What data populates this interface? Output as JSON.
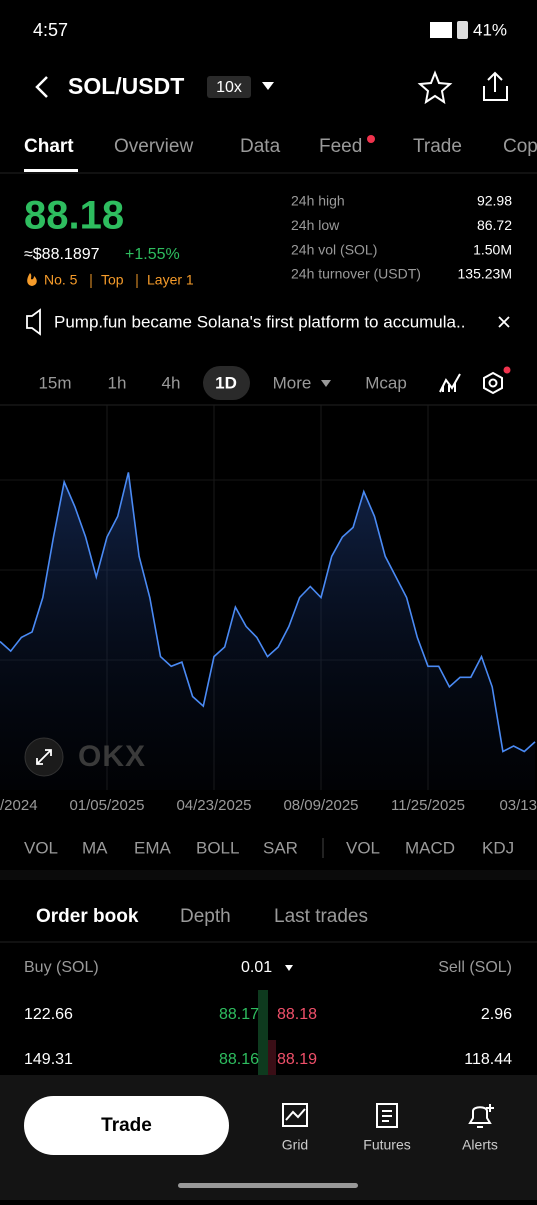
{
  "status": {
    "time": "4:57",
    "battery": "41%"
  },
  "header": {
    "pair": "SOL/USDT",
    "leverage": "10x"
  },
  "tabs": [
    "Chart",
    "Overview",
    "Data",
    "Feed",
    "Trade",
    "Cop"
  ],
  "ticker": {
    "price": "88.18",
    "usd_price": "≈$88.1897",
    "change": "+1.55%",
    "tags": [
      "No. 5",
      "Top",
      "Layer 1"
    ],
    "stats": [
      [
        "24h high",
        "92.98"
      ],
      [
        "24h low",
        "86.72"
      ],
      [
        "24h vol (SOL)",
        "1.50M"
      ],
      [
        "24h turnover (USDT)",
        "135.23M"
      ]
    ]
  },
  "news": "Pump.fun became Solana's first platform to accumula..",
  "intervals": [
    "15m",
    "1h",
    "4h",
    "1D",
    "More",
    "Mcap"
  ],
  "chart_data": {
    "type": "line",
    "watermark": "OKX",
    "categories": [
      "/2024",
      null,
      null,
      null,
      null,
      null,
      null,
      null,
      null,
      null,
      "01/05/2025",
      null,
      null,
      null,
      null,
      null,
      null,
      null,
      null,
      null,
      "04/23/2025",
      null,
      null,
      null,
      null,
      null,
      null,
      null,
      null,
      null,
      "08/09/2025",
      null,
      null,
      null,
      null,
      null,
      null,
      null,
      null,
      null,
      "11/25/2025",
      null,
      null,
      null,
      null,
      null,
      null,
      null,
      null,
      null,
      "03/13"
    ],
    "series": [
      {
        "color": "#4a8af4",
        "values": [
          168,
          161,
          171,
          175,
          200,
          244,
          284,
          266,
          244,
          215,
          244,
          259,
          291,
          230,
          200,
          157,
          150,
          153,
          128,
          121,
          157,
          164,
          193,
          179,
          171,
          157,
          164,
          179,
          200,
          208,
          200,
          230,
          244,
          251,
          277,
          259,
          230,
          215,
          200,
          171,
          150,
          150,
          135,
          142,
          142,
          157,
          135,
          88,
          92,
          88,
          95
        ]
      }
    ],
    "ylim": [
      60,
      340
    ],
    "grid": true
  },
  "indicators": {
    "main": [
      "VOL",
      "MA",
      "EMA",
      "BOLL",
      "SAR"
    ],
    "sub": [
      "VOL",
      "MACD",
      "KDJ"
    ]
  },
  "orderbook": {
    "tabs": [
      "Order book",
      "Depth",
      "Last trades"
    ],
    "buy_header": "Buy (SOL)",
    "step": "0.01",
    "sell_header": "Sell (SOL)",
    "rows": [
      [
        "122.66",
        "88.17",
        "88.18",
        "2.96"
      ],
      [
        "149.31",
        "88.16",
        "88.19",
        "118.44"
      ]
    ]
  },
  "nav": {
    "trade": "Trade",
    "items": [
      "Grid",
      "Futures",
      "Alerts"
    ]
  }
}
